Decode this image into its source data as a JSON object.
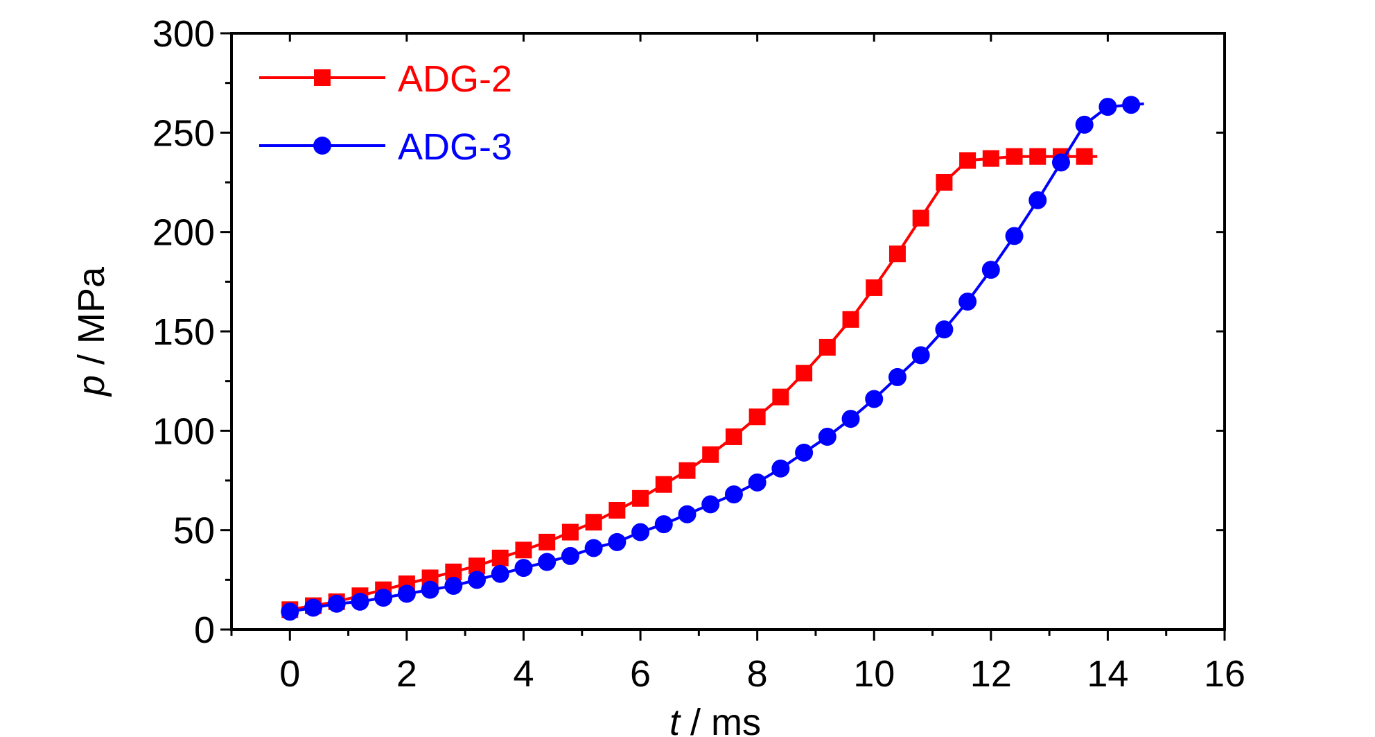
{
  "chart_data": {
    "type": "line",
    "title": "",
    "xlabel_var": "t",
    "xlabel_unit": " / ms",
    "ylabel_var": "p",
    "ylabel_unit": " / MPa",
    "xlim": [
      -1,
      16
    ],
    "ylim": [
      0,
      300
    ],
    "x_ticks": [
      0,
      2,
      4,
      6,
      8,
      10,
      12,
      14,
      16
    ],
    "y_ticks": [
      0,
      50,
      100,
      150,
      200,
      250,
      300
    ],
    "grid": false,
    "legend_position": "top-left",
    "series": [
      {
        "name": "ADG-2",
        "color": "#ff0000",
        "marker": "square",
        "x": [
          0,
          0.4,
          0.8,
          1.2,
          1.6,
          2.0,
          2.4,
          2.8,
          3.2,
          3.6,
          4.0,
          4.4,
          4.8,
          5.2,
          5.6,
          6.0,
          6.4,
          6.8,
          7.2,
          7.6,
          8.0,
          8.4,
          8.8,
          9.2,
          9.6,
          10.0,
          10.4,
          10.8,
          11.2,
          11.6,
          12.0,
          12.4,
          12.8,
          13.2,
          13.6
        ],
        "y": [
          10,
          12,
          14,
          17,
          20,
          23,
          26,
          29,
          32,
          36,
          40,
          44,
          49,
          54,
          60,
          66,
          73,
          80,
          88,
          97,
          107,
          117,
          129,
          142,
          156,
          172,
          189,
          207,
          225,
          236,
          237,
          238,
          238,
          238,
          238
        ]
      },
      {
        "name": "ADG-3",
        "color": "#0000ff",
        "marker": "circle",
        "x": [
          0,
          0.4,
          0.8,
          1.2,
          1.6,
          2.0,
          2.4,
          2.8,
          3.2,
          3.6,
          4.0,
          4.4,
          4.8,
          5.2,
          5.6,
          6.0,
          6.4,
          6.8,
          7.2,
          7.6,
          8.0,
          8.4,
          8.8,
          9.2,
          9.6,
          10.0,
          10.4,
          10.8,
          11.2,
          11.6,
          12.0,
          12.4,
          12.8,
          13.2,
          13.6,
          14.0,
          14.4
        ],
        "y": [
          9,
          11,
          13,
          14,
          16,
          18,
          20,
          22,
          25,
          28,
          31,
          34,
          37,
          41,
          44,
          49,
          53,
          58,
          63,
          68,
          74,
          81,
          89,
          97,
          106,
          116,
          127,
          138,
          151,
          165,
          181,
          198,
          216,
          235,
          254,
          263,
          264
        ]
      }
    ]
  }
}
